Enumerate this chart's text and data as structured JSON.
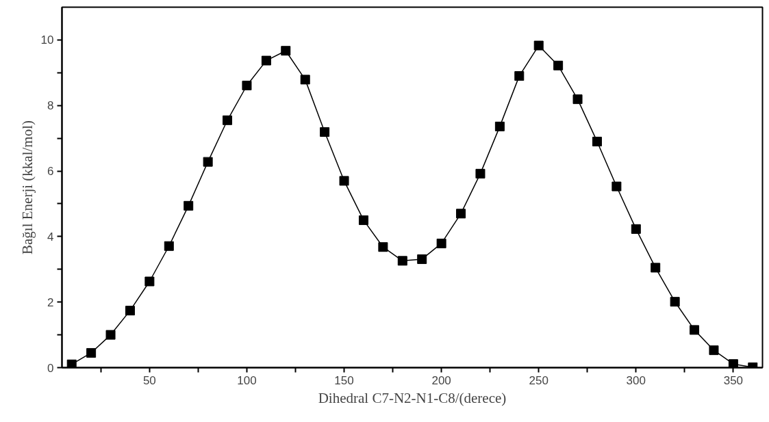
{
  "chart_data": {
    "type": "line",
    "xlabel": "Dihedral C7-N2-N1-C8/(derece)",
    "ylabel": "Bağıl Enerji (kkal/mol)",
    "x": [
      10,
      20,
      30,
      40,
      50,
      60,
      70,
      80,
      90,
      100,
      110,
      120,
      130,
      140,
      150,
      160,
      170,
      180,
      190,
      200,
      210,
      220,
      230,
      240,
      250,
      260,
      270,
      280,
      290,
      300,
      310,
      320,
      330,
      340,
      350,
      360
    ],
    "series": [
      {
        "color": "#000000",
        "values": [
          0.1,
          0.45,
          1.0,
          1.74,
          2.63,
          3.71,
          4.94,
          6.28,
          7.55,
          8.61,
          9.37,
          9.67,
          8.79,
          7.19,
          5.7,
          4.5,
          3.68,
          3.26,
          3.31,
          3.79,
          4.7,
          5.92,
          7.36,
          8.9,
          9.83,
          9.22,
          8.19,
          6.9,
          5.53,
          4.23,
          3.05,
          2.01,
          1.15,
          0.53,
          0.11,
          0.01
        ]
      }
    ],
    "marker": "square",
    "line_style": "solid",
    "grid": false,
    "xlim": [
      5,
      365
    ],
    "ylim": [
      0,
      11
    ],
    "xticks": [
      {
        "value": 25,
        "label": null
      },
      50,
      {
        "value": 75,
        "label": null
      },
      100,
      {
        "value": 125,
        "label": null
      },
      150,
      {
        "value": 175,
        "label": null
      },
      200,
      {
        "value": 225,
        "label": null
      },
      250,
      {
        "value": 275,
        "label": null
      },
      300,
      {
        "value": 325,
        "label": null
      },
      350
    ],
    "yticks": [
      0,
      {
        "value": 1,
        "label": null
      },
      2,
      {
        "value": 3,
        "label": null
      },
      4,
      {
        "value": 5,
        "label": null
      },
      6,
      {
        "value": 7,
        "label": null
      },
      8,
      {
        "value": 9,
        "label": null
      },
      10
    ]
  }
}
